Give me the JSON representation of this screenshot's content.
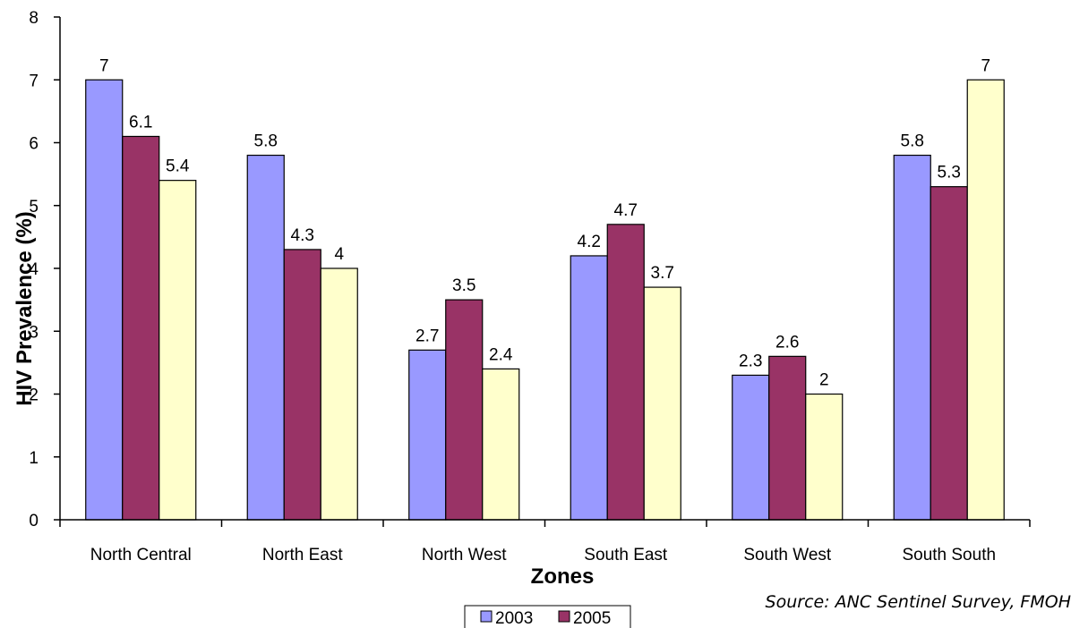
{
  "chart_data": {
    "type": "bar",
    "categories": [
      "North Central",
      "North East",
      "North West",
      "South East",
      "South West",
      "South South"
    ],
    "series": [
      {
        "name": "2003",
        "values": [
          7,
          5.8,
          2.7,
          4.2,
          2.3,
          5.8
        ],
        "color": "#9999ff"
      },
      {
        "name": "2005",
        "values": [
          6.1,
          4.3,
          3.5,
          4.7,
          2.6,
          5.3
        ],
        "color": "#993366"
      },
      {
        "name": "",
        "values": [
          5.4,
          4,
          2.4,
          3.7,
          2,
          7
        ],
        "color": "#ffffcc"
      }
    ],
    "data_labels": [
      [
        "7",
        "6.1",
        "5.4"
      ],
      [
        "5.8",
        "4.3",
        "4"
      ],
      [
        "2.7",
        "3.5",
        "2.4"
      ],
      [
        "4.2",
        "4.7",
        "3.7"
      ],
      [
        "2.3",
        "2.6",
        "2"
      ],
      [
        "5.8",
        "5.3",
        "7"
      ]
    ],
    "xlabel": "Zones",
    "ylabel": "HIV Prevalence (%)",
    "ylim": [
      0,
      8
    ],
    "yticks": [
      0,
      1,
      2,
      3,
      4,
      5,
      6,
      7,
      8
    ],
    "ytick_labels": [
      "0",
      "1",
      "2",
      "3",
      "4",
      "5",
      "6",
      "7",
      "8"
    ],
    "grid": false,
    "legend": {
      "placement": "bottom-center",
      "entries": [
        "2003",
        "2005"
      ]
    },
    "source": "Source: ANC Sentinel Survey, FMOH"
  }
}
